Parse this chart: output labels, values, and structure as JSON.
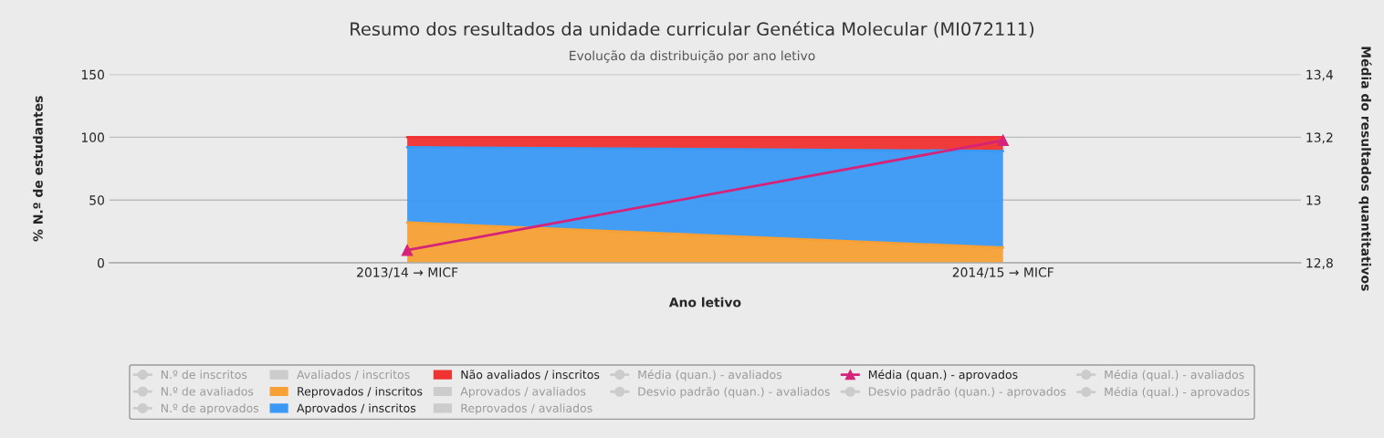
{
  "chart_data": {
    "type": "area",
    "stacked": true,
    "title": "Resumo dos resultados da unidade curricular Genética Molecular (MI072111)",
    "subtitle": "Evolução da distribuição por ano letivo",
    "xlabel": "Ano letivo",
    "ylabel": "% N.º de estudantes",
    "y2label": "Média do resultados quantitativos",
    "categories": [
      "2013/14 → MICF",
      "2014/15 → MICF"
    ],
    "ylim": [
      0,
      150
    ],
    "yticks": [
      0,
      50,
      100,
      150
    ],
    "y2lim": [
      12.8,
      13.4
    ],
    "y2ticks": [
      {
        "value": 12.8,
        "label": "12,8"
      },
      {
        "value": 13,
        "label": "13"
      },
      {
        "value": 13.2,
        "label": "13,2"
      },
      {
        "value": 13.4,
        "label": "13,4"
      }
    ],
    "grid": "y",
    "legend": "bottom",
    "series": [
      {
        "name": "N.º de inscritos",
        "type": "line",
        "color": "#cccccc",
        "values": [
          null,
          null
        ]
      },
      {
        "name": "N.º de avaliados",
        "type": "line",
        "color": "#cccccc",
        "values": [
          null,
          null
        ]
      },
      {
        "name": "N.º de aprovados",
        "type": "line",
        "color": "#cccccc",
        "values": [
          null,
          null
        ]
      },
      {
        "name": "Avaliados / inscritos",
        "type": "area",
        "color": "#cccccc",
        "values": [
          null,
          null
        ]
      },
      {
        "name": "Reprovados / inscritos",
        "color": "#f7a035",
        "values": [
          32,
          12
        ]
      },
      {
        "name": "Aprovados / inscritos",
        "color": "#3a99f5",
        "values": [
          60,
          77
        ]
      },
      {
        "name": "Não avaliados / inscritos",
        "color": "#f03232",
        "values": [
          8,
          11
        ]
      },
      {
        "name": "Aprovados / avaliados",
        "type": "area",
        "color": "#cccccc",
        "values": [
          null,
          null
        ]
      },
      {
        "name": "Reprovados / avaliados",
        "type": "area",
        "color": "#cccccc",
        "values": [
          null,
          null
        ]
      },
      {
        "name": "Média (quan.) - avaliados",
        "type": "line",
        "color": "#cccccc",
        "values": [
          null,
          null
        ]
      },
      {
        "name": "Desvio padrão (quan.) - avaliados",
        "type": "line",
        "color": "#cccccc",
        "values": [
          null,
          null
        ]
      },
      {
        "name": "Média (quan.) - aprovados",
        "type": "line",
        "axis": "y2",
        "color": "#d6237a",
        "marker": "triangle",
        "values": [
          12.84,
          13.19
        ]
      },
      {
        "name": "Desvio padrão (quan.) - aprovados",
        "type": "line",
        "color": "#cccccc",
        "values": [
          null,
          null
        ]
      },
      {
        "name": "Média (qual.) - avaliados",
        "type": "line",
        "color": "#cccccc",
        "values": [
          null,
          null
        ]
      },
      {
        "name": "Média (qual.) - aprovados",
        "type": "line",
        "color": "#cccccc",
        "values": [
          null,
          null
        ]
      }
    ]
  }
}
